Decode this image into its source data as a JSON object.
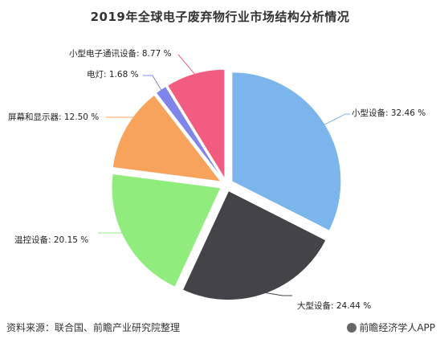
{
  "chart_data": {
    "type": "pie",
    "title": "2019年全球电子废弃物行业市场结构分析情况",
    "slices": [
      {
        "label": "小型设备: 32.46 %",
        "value": 32.46,
        "color": "#7CB5EC"
      },
      {
        "label": "大型设备: 24.44 %",
        "value": 24.44,
        "color": "#434348"
      },
      {
        "label": "温控设备: 20.15 %",
        "value": 20.15,
        "color": "#90ED7D"
      },
      {
        "label": "屏幕和显示器: 12.50 %",
        "value": 12.5,
        "color": "#F7A35C"
      },
      {
        "label": "电灯: 1.68 %",
        "value": 1.68,
        "color": "#8085E9"
      },
      {
        "label": "小型电子通讯设备: 8.77 %",
        "value": 8.77,
        "color": "#F15C80"
      }
    ],
    "start_angle_deg": 0,
    "exploded": true
  },
  "footer": {
    "source": "资料来源：联合国、前瞻产业研究院整理",
    "brand": "前瞻经济学人APP"
  }
}
